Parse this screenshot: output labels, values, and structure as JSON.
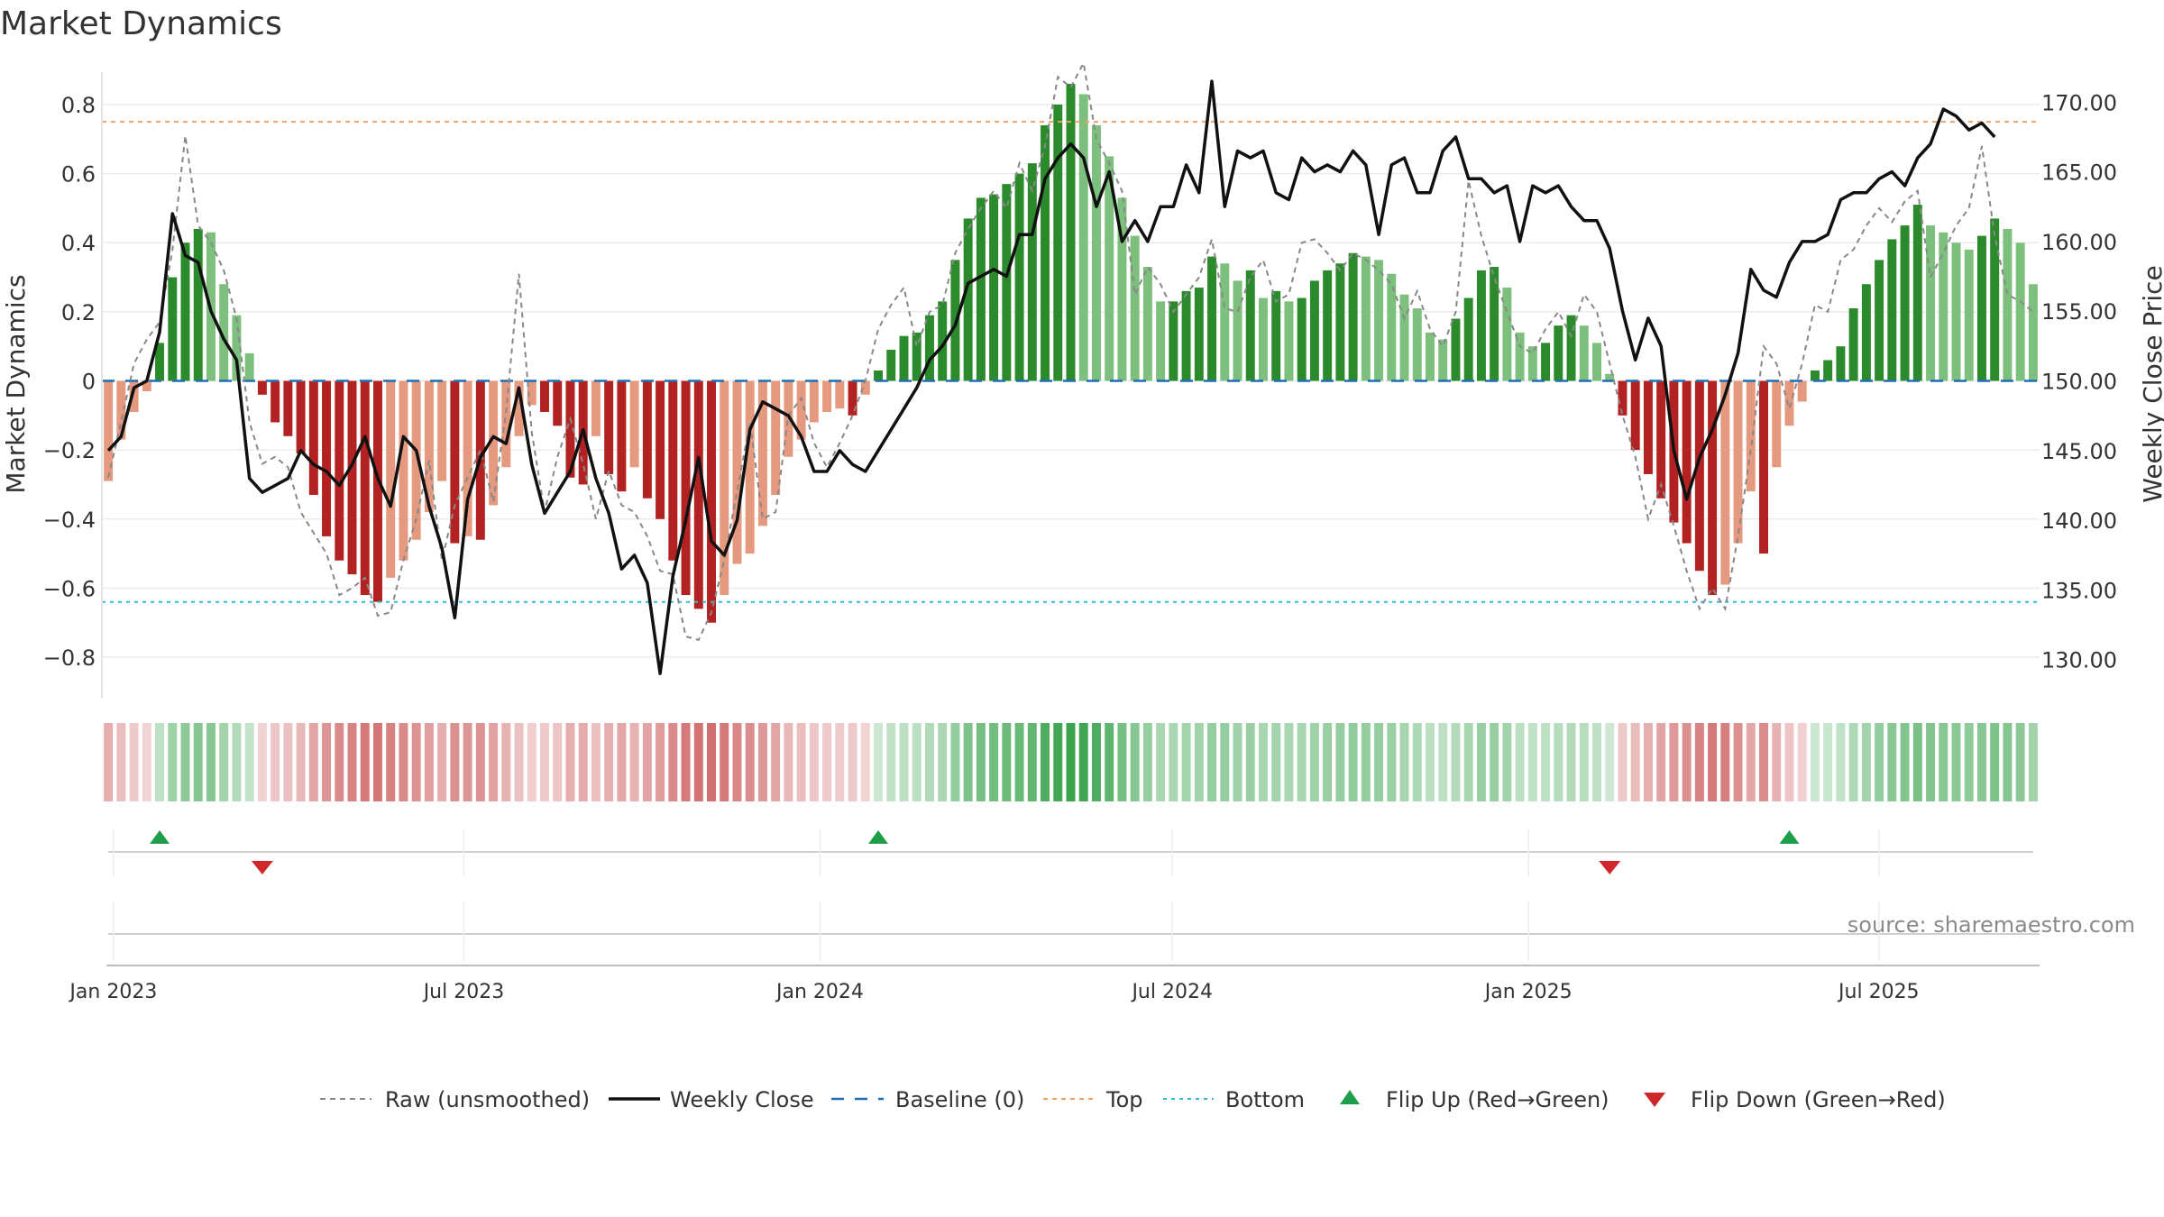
{
  "title": "Market Dynamics",
  "source_label": "source: sharemaestro.com",
  "colors": {
    "strong_green": "#2b8a2b",
    "light_green": "#7dbf7d",
    "strong_red": "#b22222",
    "light_red": "#e59a80",
    "close_line": "#111111",
    "raw_line": "#888888",
    "baseline": "#1f6fb4",
    "top": "#f0a060",
    "bottom": "#30bfd0",
    "flip_up": "#1e9e4a",
    "flip_down": "#d0282a"
  },
  "chart_data": {
    "type": "bar",
    "title": "Market Dynamics",
    "ylabel": "Market Dynamics",
    "y2label": "Weekly Close Price",
    "ylim": [
      -0.92,
      0.92
    ],
    "y2lim": [
      127.2,
      172.8
    ],
    "yticks": [
      -0.8,
      -0.6,
      -0.4,
      -0.2,
      0,
      0.2,
      0.4,
      0.6,
      0.8
    ],
    "ytick_labels": [
      "−0.8",
      "−0.6",
      "−0.4",
      "−0.2",
      "0",
      "0.2",
      "0.4",
      "0.6",
      "0.8"
    ],
    "y2ticks": [
      130,
      135,
      140,
      145,
      150,
      155,
      160,
      165,
      170
    ],
    "y2tick_labels": [
      "130.00",
      "135.00",
      "140.00",
      "145.00",
      "150.00",
      "155.00",
      "160.00",
      "165.00",
      "170.00"
    ],
    "xaxis": {
      "start": "2022-12-26",
      "end": "2025-09-22"
    },
    "xticks": [
      {
        "date": "2023-01-01",
        "label": "Jan 2023"
      },
      {
        "date": "2023-07-01",
        "label": "Jul 2023"
      },
      {
        "date": "2024-01-01",
        "label": "Jan 2024"
      },
      {
        "date": "2024-07-01",
        "label": "Jul 2024"
      },
      {
        "date": "2025-01-01",
        "label": "Jan 2025"
      },
      {
        "date": "2025-07-01",
        "label": "Jul 2025"
      }
    ],
    "top_level": 0.75,
    "bottom_level": -0.64,
    "baseline": 0,
    "bars": [
      -0.29,
      -0.17,
      -0.09,
      -0.03,
      0.11,
      0.3,
      0.4,
      0.44,
      0.43,
      0.28,
      0.19,
      0.08,
      -0.04,
      -0.12,
      -0.16,
      -0.21,
      -0.33,
      -0.45,
      -0.52,
      -0.56,
      -0.62,
      -0.64,
      -0.57,
      -0.52,
      -0.46,
      -0.38,
      -0.29,
      -0.47,
      -0.45,
      -0.46,
      -0.36,
      -0.25,
      -0.16,
      -0.07,
      -0.09,
      -0.13,
      -0.28,
      -0.3,
      -0.16,
      -0.27,
      -0.32,
      -0.25,
      -0.34,
      -0.4,
      -0.52,
      -0.62,
      -0.66,
      -0.7,
      -0.62,
      -0.53,
      -0.5,
      -0.42,
      -0.33,
      -0.22,
      -0.17,
      -0.12,
      -0.09,
      -0.08,
      -0.1,
      -0.04,
      0.03,
      0.09,
      0.13,
      0.14,
      0.19,
      0.23,
      0.35,
      0.47,
      0.53,
      0.54,
      0.57,
      0.6,
      0.63,
      0.74,
      0.8,
      0.86,
      0.83,
      0.74,
      0.65,
      0.53,
      0.42,
      0.33,
      0.23,
      0.23,
      0.26,
      0.27,
      0.36,
      0.34,
      0.29,
      0.32,
      0.24,
      0.26,
      0.23,
      0.24,
      0.29,
      0.32,
      0.34,
      0.37,
      0.36,
      0.35,
      0.31,
      0.25,
      0.21,
      0.14,
      0.12,
      0.18,
      0.24,
      0.32,
      0.33,
      0.27,
      0.14,
      0.1,
      0.11,
      0.16,
      0.19,
      0.16,
      0.11,
      0.02,
      -0.1,
      -0.2,
      -0.27,
      -0.34,
      -0.41,
      -0.47,
      -0.55,
      -0.62,
      -0.59,
      -0.47,
      -0.32,
      -0.5,
      -0.25,
      -0.13,
      -0.06,
      0.03,
      0.06,
      0.1,
      0.21,
      0.28,
      0.35,
      0.41,
      0.45,
      0.51,
      0.45,
      0.43,
      0.4,
      0.38,
      0.42,
      0.47,
      0.44,
      0.4,
      0.28
    ],
    "raw": [
      -0.28,
      -0.12,
      0.05,
      0.12,
      0.17,
      0.38,
      0.71,
      0.45,
      0.4,
      0.32,
      0.18,
      -0.12,
      -0.24,
      -0.22,
      -0.25,
      -0.38,
      -0.44,
      -0.5,
      -0.62,
      -0.6,
      -0.57,
      -0.68,
      -0.67,
      -0.52,
      -0.4,
      -0.23,
      -0.52,
      -0.36,
      -0.28,
      -0.2,
      -0.35,
      -0.09,
      0.31,
      -0.15,
      -0.38,
      -0.22,
      -0.11,
      -0.24,
      -0.4,
      -0.26,
      -0.36,
      -0.38,
      -0.45,
      -0.55,
      -0.56,
      -0.74,
      -0.75,
      -0.67,
      -0.52,
      -0.32,
      -0.12,
      -0.4,
      -0.38,
      -0.1,
      -0.05,
      -0.18,
      -0.25,
      -0.18,
      -0.1,
      0.0,
      0.15,
      0.22,
      0.27,
      0.1,
      0.2,
      0.22,
      0.37,
      0.44,
      0.5,
      0.55,
      0.5,
      0.63,
      0.55,
      0.68,
      0.88,
      0.85,
      0.92,
      0.7,
      0.63,
      0.55,
      0.25,
      0.33,
      0.28,
      0.2,
      0.25,
      0.3,
      0.41,
      0.21,
      0.2,
      0.3,
      0.35,
      0.23,
      0.25,
      0.4,
      0.41,
      0.37,
      0.32,
      0.37,
      0.35,
      0.32,
      0.28,
      0.18,
      0.26,
      0.15,
      0.1,
      0.2,
      0.58,
      0.42,
      0.3,
      0.2,
      0.1,
      0.08,
      0.15,
      0.2,
      0.13,
      0.25,
      0.2,
      0.05,
      -0.1,
      -0.22,
      -0.4,
      -0.3,
      -0.42,
      -0.55,
      -0.66,
      -0.6,
      -0.66,
      -0.45,
      -0.2,
      0.1,
      0.05,
      -0.08,
      0.05,
      0.22,
      0.2,
      0.35,
      0.38,
      0.45,
      0.5,
      0.46,
      0.52,
      0.55,
      0.3,
      0.37,
      0.45,
      0.5,
      0.68,
      0.42,
      0.25,
      0.23,
      0.2
    ],
    "close": [
      145.0,
      146.0,
      149.5,
      150.0,
      153.5,
      162.0,
      159.0,
      158.5,
      155.0,
      153.0,
      151.5,
      143.0,
      142.0,
      142.5,
      143.0,
      145.0,
      144.0,
      143.5,
      142.5,
      144.0,
      146.0,
      143.0,
      141.0,
      146.0,
      145.0,
      141.0,
      138.0,
      133.0,
      141.5,
      144.5,
      146.0,
      145.5,
      149.5,
      144.0,
      140.5,
      142.0,
      143.5,
      146.5,
      143.0,
      140.5,
      136.5,
      137.5,
      135.5,
      129.0,
      136.0,
      140.0,
      144.5,
      138.5,
      137.5,
      140.0,
      146.5,
      148.5,
      148.0,
      147.5,
      146.0,
      143.5,
      143.5,
      145.0,
      144.0,
      143.5,
      145.0,
      146.5,
      148.0,
      149.5,
      151.5,
      152.5,
      154.0,
      157.0,
      157.5,
      158.0,
      157.5,
      160.5,
      160.5,
      164.5,
      166.0,
      167.0,
      166.0,
      162.5,
      165.0,
      160.0,
      161.5,
      160.0,
      162.5,
      162.5,
      165.5,
      163.5,
      171.5,
      162.5,
      166.5,
      166.0,
      166.5,
      163.5,
      163.0,
      166.0,
      165.0,
      165.5,
      165.0,
      166.5,
      165.5,
      160.5,
      165.5,
      166.0,
      163.5,
      163.5,
      166.5,
      167.5,
      164.5,
      164.5,
      163.5,
      164.0,
      160.0,
      164.0,
      163.5,
      164.0,
      162.5,
      161.5,
      161.5,
      159.5,
      155.0,
      151.5,
      154.5,
      152.5,
      145.0,
      141.5,
      144.5,
      146.5,
      149.0,
      152.0,
      158.0,
      156.5,
      156.0,
      158.5,
      160.0,
      160.0,
      160.5,
      163.0,
      163.5,
      163.5,
      164.5,
      165.0,
      164.0,
      166.0,
      167.0,
      169.5,
      169.0,
      168.0,
      168.5,
      167.5
    ],
    "flips": [
      {
        "index": 4,
        "dir": "up"
      },
      {
        "index": 12,
        "dir": "down"
      },
      {
        "index": 60,
        "dir": "up"
      },
      {
        "index": 117,
        "dir": "down"
      },
      {
        "index": 131,
        "dir": "up"
      }
    ],
    "legend": [
      {
        "key": "raw",
        "label": "Raw (unsmoothed)"
      },
      {
        "key": "close",
        "label": "Weekly Close"
      },
      {
        "key": "baseline",
        "label": "Baseline (0)"
      },
      {
        "key": "top",
        "label": "Top"
      },
      {
        "key": "bottom",
        "label": "Bottom"
      },
      {
        "key": "flipup",
        "label": "Flip Up (Red→Green)"
      },
      {
        "key": "flipdown",
        "label": "Flip Down (Green→Red)"
      }
    ]
  }
}
